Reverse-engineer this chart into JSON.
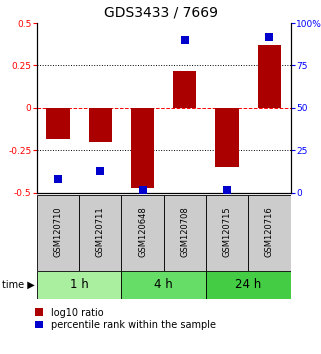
{
  "title": "GDS3433 / 7669",
  "samples": [
    "GSM120710",
    "GSM120711",
    "GSM120648",
    "GSM120708",
    "GSM120715",
    "GSM120716"
  ],
  "log10_ratio": [
    -0.18,
    -0.2,
    -0.47,
    0.22,
    -0.35,
    0.37
  ],
  "percentile_rank": [
    8,
    13,
    2,
    90,
    2,
    92
  ],
  "groups": [
    {
      "label": "1 h",
      "color": "#aaeea0",
      "start": 0,
      "end": 2
    },
    {
      "label": "4 h",
      "color": "#66dd66",
      "start": 2,
      "end": 4
    },
    {
      "label": "24 h",
      "color": "#44cc44",
      "start": 4,
      "end": 6
    }
  ],
  "ylim_left": [
    -0.5,
    0.5
  ],
  "ylim_right": [
    0,
    100
  ],
  "bar_color": "#aa0000",
  "dot_color": "#0000cc",
  "bar_width": 0.55,
  "dot_size": 30,
  "title_fontsize": 10,
  "tick_fontsize": 6.5,
  "sample_fontsize": 6,
  "legend_fontsize": 7,
  "group_fontsize": 8.5,
  "yticks_left": [
    -0.5,
    -0.25,
    0,
    0.25,
    0.5
  ],
  "ytick_labels_left": [
    "-0.5",
    "-0.25",
    "0",
    "0.25",
    "0.5"
  ],
  "yticks_right": [
    0,
    25,
    50,
    75,
    100
  ],
  "ytick_labels_right": [
    "0",
    "25",
    "50",
    "75",
    "100%"
  ],
  "hlines": [
    -0.25,
    0.0,
    0.25
  ],
  "hline_styles": [
    "dotted",
    "dashed",
    "dotted"
  ],
  "hline_colors": [
    "black",
    "red",
    "black"
  ],
  "sample_box_color": "#cccccc",
  "plot_bg_color": "#ffffff"
}
